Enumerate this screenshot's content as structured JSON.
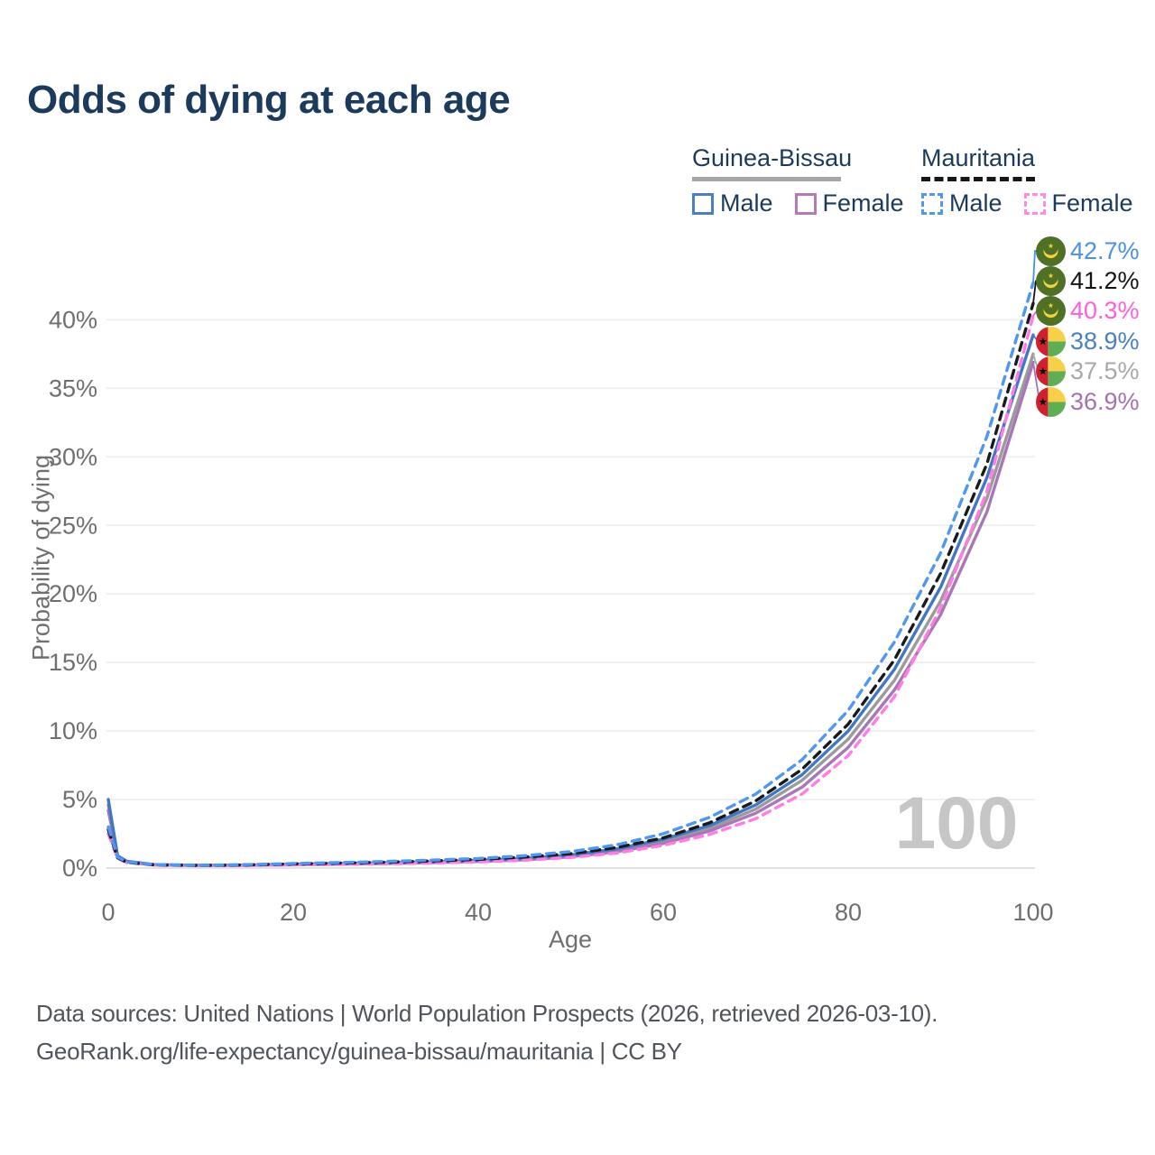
{
  "title": "Odds of dying at each age",
  "legend": {
    "groups": [
      {
        "label": "Guinea-Bissau",
        "line_style": "solid",
        "rule_color": "#a6a6a6",
        "items": [
          {
            "label": "Male",
            "color": "#4a7fc1",
            "dashed": false
          },
          {
            "label": "Female",
            "color": "#b47ab8",
            "dashed": false
          }
        ]
      },
      {
        "label": "Mauritania",
        "line_style": "dashed",
        "rule_color": "#161616",
        "items": [
          {
            "label": "Male",
            "color": "#4f97f0",
            "dashed": true
          },
          {
            "label": "Female",
            "color": "#ff8ae0",
            "dashed": true
          }
        ]
      }
    ]
  },
  "chart_data": {
    "type": "line",
    "title": "Odds of dying at each age",
    "xlabel": "Age",
    "ylabel": "Probability of dying",
    "xlim": [
      0,
      100
    ],
    "ylim": [
      0,
      44
    ],
    "xticks": [
      0,
      20,
      40,
      60,
      80,
      100
    ],
    "yticks": [
      0,
      5,
      10,
      15,
      20,
      25,
      30,
      35,
      40
    ],
    "ytick_suffix": "%",
    "grid": "horizontal",
    "x_ages": [
      0,
      1,
      2,
      5,
      10,
      15,
      20,
      25,
      30,
      35,
      40,
      45,
      50,
      55,
      60,
      65,
      70,
      75,
      80,
      85,
      90,
      95,
      100
    ],
    "series": [
      {
        "name": "Guinea-Bissau",
        "color": "#9b9b9b",
        "dashed": false,
        "values": [
          4.6,
          0.85,
          0.48,
          0.24,
          0.19,
          0.21,
          0.26,
          0.31,
          0.36,
          0.42,
          0.52,
          0.66,
          0.9,
          1.3,
          1.95,
          2.9,
          4.3,
          6.4,
          9.4,
          13.7,
          19.5,
          27.0,
          37.5
        ]
      },
      {
        "name": "Guinea-Bissau Female",
        "color": "#a877b5",
        "dashed": false,
        "values": [
          4.2,
          0.8,
          0.45,
          0.23,
          0.18,
          0.2,
          0.24,
          0.28,
          0.33,
          0.39,
          0.48,
          0.6,
          0.82,
          1.2,
          1.8,
          2.7,
          4.0,
          5.9,
          8.8,
          13.0,
          18.5,
          26.0,
          36.9
        ]
      },
      {
        "name": "Guinea-Bissau Male",
        "color": "#4277c4",
        "dashed": false,
        "values": [
          5.0,
          0.9,
          0.5,
          0.25,
          0.2,
          0.22,
          0.28,
          0.33,
          0.38,
          0.45,
          0.55,
          0.7,
          0.95,
          1.4,
          2.1,
          3.1,
          4.6,
          6.8,
          10.0,
          14.5,
          20.5,
          28.5,
          38.9
        ]
      },
      {
        "name": "Mauritania Female",
        "color": "#ff7ce4",
        "dashed": true,
        "values": [
          2.5,
          0.7,
          0.4,
          0.21,
          0.17,
          0.19,
          0.23,
          0.27,
          0.31,
          0.37,
          0.45,
          0.57,
          0.77,
          1.1,
          1.65,
          2.45,
          3.6,
          5.4,
          8.2,
          12.5,
          19.0,
          27.5,
          40.3
        ]
      },
      {
        "name": "Mauritania",
        "color": "#1a1a1a",
        "dashed": true,
        "values": [
          2.8,
          0.75,
          0.42,
          0.23,
          0.19,
          0.23,
          0.3,
          0.36,
          0.43,
          0.52,
          0.63,
          0.8,
          1.05,
          1.5,
          2.2,
          3.3,
          4.9,
          7.2,
          10.5,
          15.2,
          21.5,
          29.5,
          41.2
        ]
      },
      {
        "name": "Mauritania Male",
        "color": "#4f97f0",
        "dashed": true,
        "values": [
          3.0,
          0.8,
          0.45,
          0.25,
          0.2,
          0.25,
          0.33,
          0.4,
          0.48,
          0.58,
          0.7,
          0.9,
          1.2,
          1.7,
          2.5,
          3.7,
          5.4,
          7.9,
          11.5,
          16.5,
          23.0,
          31.5,
          42.7
        ]
      }
    ],
    "legend_position": "top-right"
  },
  "end_labels": [
    {
      "series": "Mauritania Male",
      "value": "42.7%",
      "end_value": 42.7,
      "color": "#4a90e8",
      "flag": "mauritania"
    },
    {
      "series": "Mauritania",
      "value": "41.2%",
      "end_value": 41.2,
      "color": "#141414",
      "flag": "mauritania"
    },
    {
      "series": "Mauritania Female",
      "value": "40.3%",
      "end_value": 40.3,
      "color": "#ff5fd6",
      "flag": "mauritania"
    },
    {
      "series": "Guinea-Bissau Male",
      "value": "38.9%",
      "end_value": 38.9,
      "color": "#4a7fc1",
      "flag": "guinea-bissau"
    },
    {
      "series": "Guinea-Bissau",
      "value": "37.5%",
      "end_value": 37.5,
      "color": "#a8a8a8",
      "flag": "guinea-bissau"
    },
    {
      "series": "Guinea-Bissau Female",
      "value": "36.9%",
      "end_value": 36.9,
      "color": "#a572b0",
      "flag": "guinea-bissau"
    }
  ],
  "age_indicator": "100",
  "footer": {
    "line1": "Data sources: United Nations | World Population Prospects (2026, retrieved 2026-03-10).",
    "line2": "GeoRank.org/life-expectancy/guinea-bissau/mauritania | CC BY"
  },
  "colors": {
    "title": "#1c3a5c",
    "axis_text": "#6f6f6f",
    "gridline": "#ededed",
    "watermark": "#c6c6c6"
  }
}
